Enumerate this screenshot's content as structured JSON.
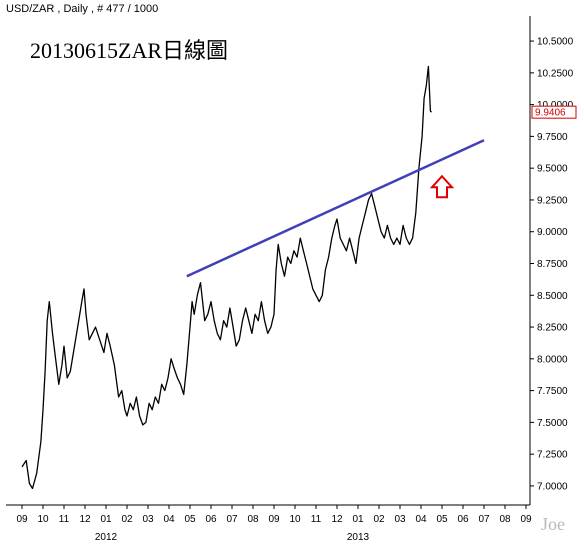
{
  "header": {
    "label": "USD/ZAR , Daily , # 477 / 1000"
  },
  "title": "20130615ZAR日線圖",
  "watermark": "Joe",
  "colors": {
    "price": "#000000",
    "trendline": "#4040b8",
    "arrow": "#e00000",
    "last_value_box": "#d00000",
    "axis": "#000000",
    "background": "#ffffff"
  },
  "chart_data": {
    "type": "line",
    "symbol": "USD/ZAR",
    "interval": "Daily",
    "y_ticks": [
      "10.5000",
      "10.2500",
      "10.0000",
      "9.7500",
      "9.5000",
      "9.2500",
      "9.0000",
      "8.7500",
      "8.5000",
      "8.2500",
      "8.0000",
      "7.7500",
      "7.5000",
      "7.2500",
      "7.0000"
    ],
    "y_tick_values": [
      10.5,
      10.25,
      10.0,
      9.75,
      9.5,
      9.25,
      9.0,
      8.75,
      8.5,
      8.25,
      8.0,
      7.75,
      7.5,
      7.25,
      7.0
    ],
    "ylim": [
      6.85,
      10.65
    ],
    "x_ticks": [
      "09",
      "10",
      "11",
      "12",
      "01",
      "02",
      "03",
      "04",
      "05",
      "06",
      "07",
      "08",
      "09",
      "10",
      "11",
      "12",
      "01",
      "02",
      "03",
      "04",
      "05",
      "06",
      "07",
      "08",
      "09"
    ],
    "x_years": [
      {
        "label": "2012",
        "month_index": 4
      },
      {
        "label": "2013",
        "month_index": 16
      }
    ],
    "last_value": "9.9406",
    "series": [
      {
        "points": [
          [
            0.0,
            7.15
          ],
          [
            0.2,
            7.2
          ],
          [
            0.35,
            7.02
          ],
          [
            0.5,
            6.98
          ],
          [
            0.7,
            7.1
          ],
          [
            0.9,
            7.35
          ],
          [
            1.0,
            7.6
          ],
          [
            1.1,
            7.9
          ],
          [
            1.2,
            8.3
          ],
          [
            1.3,
            8.45
          ],
          [
            1.45,
            8.2
          ],
          [
            1.6,
            8.0
          ],
          [
            1.75,
            7.8
          ],
          [
            1.9,
            7.95
          ],
          [
            2.0,
            8.1
          ],
          [
            2.15,
            7.85
          ],
          [
            2.3,
            7.9
          ],
          [
            2.5,
            8.1
          ],
          [
            2.7,
            8.3
          ],
          [
            2.85,
            8.45
          ],
          [
            2.95,
            8.55
          ],
          [
            3.05,
            8.35
          ],
          [
            3.2,
            8.15
          ],
          [
            3.35,
            8.2
          ],
          [
            3.5,
            8.25
          ],
          [
            3.7,
            8.15
          ],
          [
            3.9,
            8.05
          ],
          [
            4.05,
            8.2
          ],
          [
            4.2,
            8.1
          ],
          [
            4.4,
            7.95
          ],
          [
            4.6,
            7.7
          ],
          [
            4.75,
            7.75
          ],
          [
            4.9,
            7.6
          ],
          [
            5.0,
            7.55
          ],
          [
            5.15,
            7.65
          ],
          [
            5.3,
            7.6
          ],
          [
            5.45,
            7.7
          ],
          [
            5.6,
            7.55
          ],
          [
            5.75,
            7.48
          ],
          [
            5.9,
            7.5
          ],
          [
            6.05,
            7.65
          ],
          [
            6.2,
            7.6
          ],
          [
            6.35,
            7.7
          ],
          [
            6.5,
            7.65
          ],
          [
            6.65,
            7.8
          ],
          [
            6.8,
            7.75
          ],
          [
            6.95,
            7.85
          ],
          [
            7.1,
            8.0
          ],
          [
            7.25,
            7.92
          ],
          [
            7.4,
            7.85
          ],
          [
            7.55,
            7.8
          ],
          [
            7.7,
            7.72
          ],
          [
            7.85,
            7.95
          ],
          [
            8.0,
            8.25
          ],
          [
            8.1,
            8.45
          ],
          [
            8.2,
            8.35
          ],
          [
            8.35,
            8.5
          ],
          [
            8.5,
            8.6
          ],
          [
            8.6,
            8.45
          ],
          [
            8.7,
            8.3
          ],
          [
            8.85,
            8.35
          ],
          [
            9.0,
            8.45
          ],
          [
            9.15,
            8.3
          ],
          [
            9.3,
            8.2
          ],
          [
            9.45,
            8.15
          ],
          [
            9.6,
            8.3
          ],
          [
            9.75,
            8.25
          ],
          [
            9.9,
            8.4
          ],
          [
            10.05,
            8.25
          ],
          [
            10.2,
            8.1
          ],
          [
            10.35,
            8.15
          ],
          [
            10.5,
            8.3
          ],
          [
            10.65,
            8.4
          ],
          [
            10.8,
            8.3
          ],
          [
            10.95,
            8.2
          ],
          [
            11.1,
            8.35
          ],
          [
            11.25,
            8.3
          ],
          [
            11.4,
            8.45
          ],
          [
            11.55,
            8.3
          ],
          [
            11.7,
            8.2
          ],
          [
            11.85,
            8.25
          ],
          [
            12.0,
            8.35
          ],
          [
            12.1,
            8.7
          ],
          [
            12.2,
            8.9
          ],
          [
            12.35,
            8.75
          ],
          [
            12.5,
            8.65
          ],
          [
            12.65,
            8.8
          ],
          [
            12.8,
            8.75
          ],
          [
            12.95,
            8.85
          ],
          [
            13.1,
            8.8
          ],
          [
            13.25,
            8.95
          ],
          [
            13.4,
            8.85
          ],
          [
            13.55,
            8.75
          ],
          [
            13.7,
            8.65
          ],
          [
            13.85,
            8.55
          ],
          [
            14.0,
            8.5
          ],
          [
            14.15,
            8.45
          ],
          [
            14.3,
            8.5
          ],
          [
            14.45,
            8.7
          ],
          [
            14.6,
            8.8
          ],
          [
            14.75,
            8.95
          ],
          [
            14.9,
            9.05
          ],
          [
            15.0,
            9.1
          ],
          [
            15.15,
            8.95
          ],
          [
            15.3,
            8.9
          ],
          [
            15.45,
            8.85
          ],
          [
            15.6,
            8.95
          ],
          [
            15.75,
            8.85
          ],
          [
            15.9,
            8.75
          ],
          [
            16.05,
            8.95
          ],
          [
            16.2,
            9.05
          ],
          [
            16.35,
            9.15
          ],
          [
            16.5,
            9.25
          ],
          [
            16.65,
            9.3
          ],
          [
            16.8,
            9.2
          ],
          [
            16.95,
            9.1
          ],
          [
            17.1,
            9.0
          ],
          [
            17.25,
            8.95
          ],
          [
            17.4,
            9.05
          ],
          [
            17.55,
            8.95
          ],
          [
            17.7,
            8.9
          ],
          [
            17.85,
            8.95
          ],
          [
            18.0,
            8.9
          ],
          [
            18.15,
            9.05
          ],
          [
            18.3,
            8.95
          ],
          [
            18.45,
            8.9
          ],
          [
            18.6,
            8.95
          ],
          [
            18.75,
            9.15
          ],
          [
            18.9,
            9.5
          ],
          [
            19.05,
            9.75
          ],
          [
            19.15,
            10.05
          ],
          [
            19.25,
            10.15
          ],
          [
            19.35,
            10.3
          ],
          [
            19.45,
            9.95
          ],
          [
            19.5,
            9.94
          ]
        ]
      }
    ],
    "trendline": {
      "from": [
        7.85,
        8.65
      ],
      "to": [
        22.0,
        9.72
      ]
    },
    "annotation": {
      "type": "arrow-up",
      "at": [
        20.0,
        9.35
      ]
    }
  }
}
